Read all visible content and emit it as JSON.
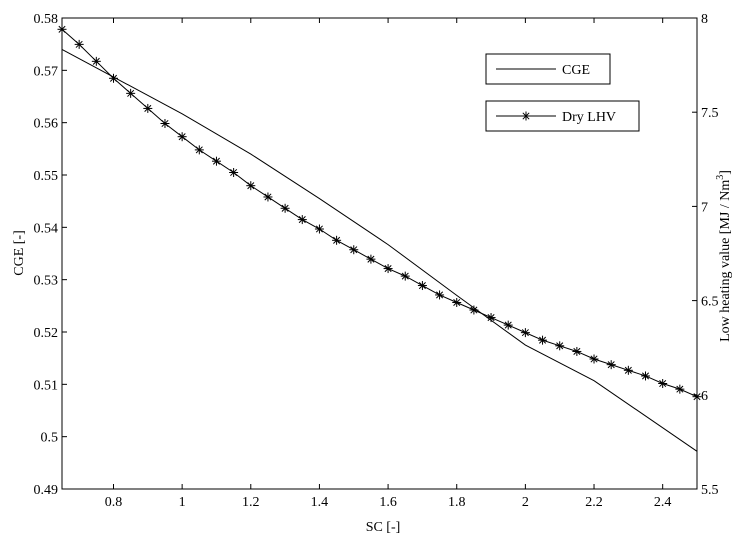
{
  "chart_data": {
    "type": "line",
    "xlabel": "SC [-]",
    "ylabel_left": "CGE [-]",
    "ylabel_right": "Low heating value [MJ / Nm",
    "ylabel_right_sup": "3",
    "ylabel_right_close": "]",
    "xlim": [
      0.65,
      2.5
    ],
    "ylim_left": [
      0.49,
      0.58
    ],
    "ylim_right": [
      5.5,
      8.0
    ],
    "x_ticks": [
      0.8,
      1.0,
      1.2,
      1.4,
      1.6,
      1.8,
      2.0,
      2.2,
      2.4
    ],
    "x_tick_labels": [
      "0.8",
      "1",
      "1.2",
      "1.4",
      "1.6",
      "1.8",
      "2",
      "2.2",
      "2.4"
    ],
    "y_left_ticks": [
      0.49,
      0.5,
      0.51,
      0.52,
      0.53,
      0.54,
      0.55,
      0.56,
      0.57,
      0.58
    ],
    "y_left_tick_labels": [
      "0.49",
      "0.5",
      "0.51",
      "0.52",
      "0.53",
      "0.54",
      "0.55",
      "0.56",
      "0.57",
      "0.58"
    ],
    "y_right_ticks": [
      5.5,
      6.0,
      6.5,
      7.0,
      7.5,
      8.0
    ],
    "y_right_tick_labels": [
      "5.5",
      "6",
      "6.5",
      "7",
      "7.5",
      "8"
    ],
    "grid": false,
    "legend_placement": "top-right",
    "series": [
      {
        "name": "CGE",
        "axis": "left",
        "marker": "none",
        "color": "#000000",
        "x": [
          0.65,
          1.0,
          1.2,
          1.4,
          1.6,
          1.8,
          2.0,
          2.2,
          2.5
        ],
        "y": [
          0.574,
          0.5617,
          0.554,
          0.5455,
          0.5367,
          0.527,
          0.5175,
          0.5107,
          0.4972
        ]
      },
      {
        "name": "Dry LHV",
        "axis": "right",
        "marker": "asterisk",
        "color": "#000000",
        "x": [
          0.65,
          0.7,
          0.75,
          0.8,
          0.85,
          0.9,
          0.95,
          1.0,
          1.05,
          1.1,
          1.15,
          1.2,
          1.25,
          1.3,
          1.35,
          1.4,
          1.45,
          1.5,
          1.55,
          1.6,
          1.65,
          1.7,
          1.75,
          1.8,
          1.85,
          1.9,
          1.95,
          2.0,
          2.05,
          2.1,
          2.15,
          2.2,
          2.25,
          2.3,
          2.35,
          2.4,
          2.45,
          2.5
        ],
        "y": [
          7.94,
          7.86,
          7.77,
          7.68,
          7.6,
          7.52,
          7.44,
          7.37,
          7.3,
          7.24,
          7.18,
          7.11,
          7.05,
          6.99,
          6.93,
          6.88,
          6.82,
          6.77,
          6.72,
          6.67,
          6.63,
          6.58,
          6.53,
          6.49,
          6.45,
          6.41,
          6.37,
          6.33,
          6.29,
          6.26,
          6.23,
          6.19,
          6.16,
          6.13,
          6.1,
          6.06,
          6.03,
          5.99
        ]
      }
    ]
  }
}
